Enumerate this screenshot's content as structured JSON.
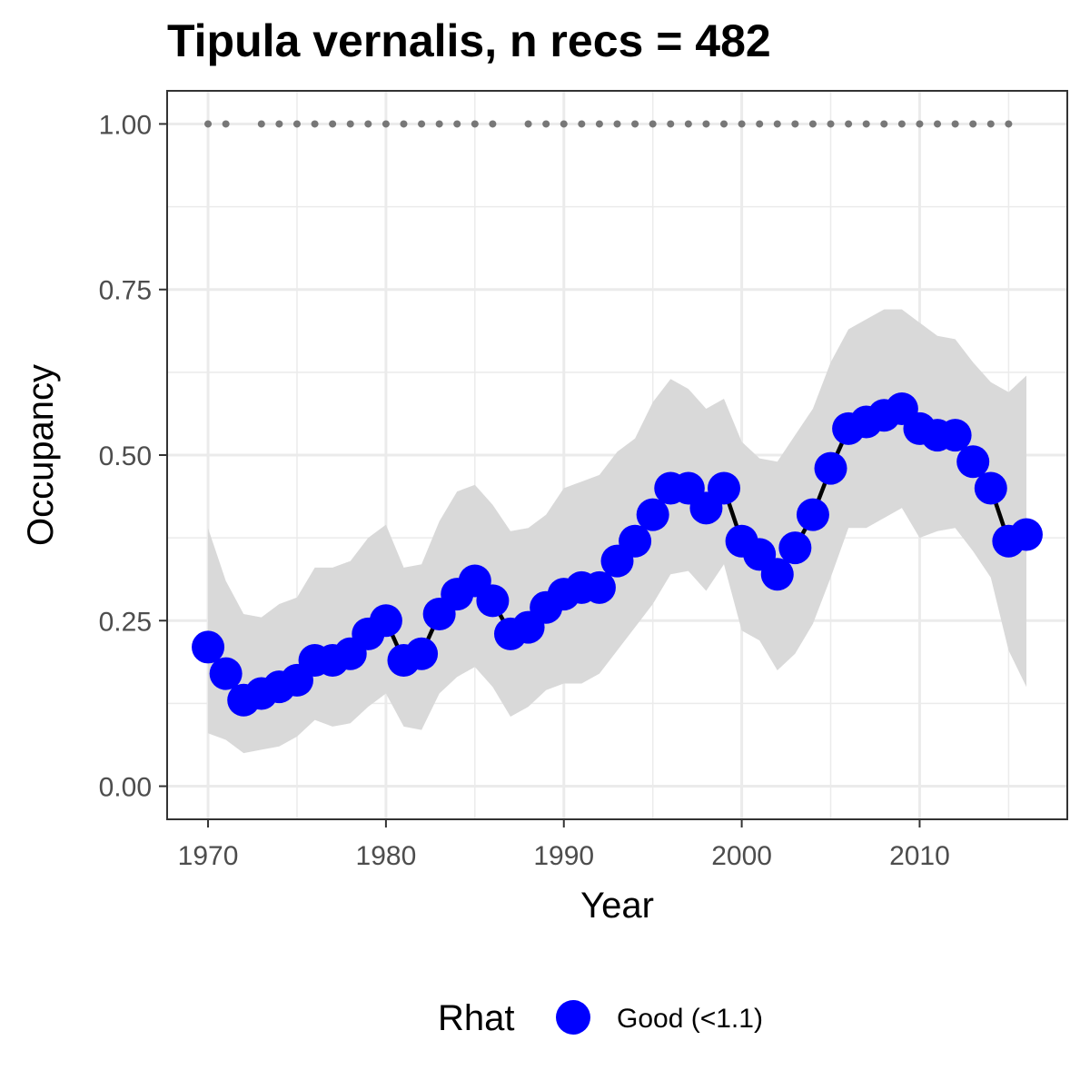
{
  "chart_data": {
    "type": "line",
    "title": "Tipula vernalis, n recs = 482",
    "xlabel": "Year",
    "ylabel": "Occupancy",
    "xlim": [
      1967.7,
      1918.3
    ],
    "ylim": [
      -0.05,
      1.05
    ],
    "x_ticks": [
      1970,
      1980,
      1990,
      2000,
      2010
    ],
    "x_tick_labels": [
      "1970",
      "1980",
      "1990",
      "2000",
      "2010"
    ],
    "y_ticks": [
      0,
      0.25,
      0.5,
      0.75,
      1
    ],
    "y_tick_labels": [
      "0.00",
      "0.25",
      "0.50",
      "0.75",
      "1.00"
    ],
    "grid": true,
    "legend_position": "bottom",
    "legend_title": "Rhat",
    "legend_label": "Good (<1.1)",
    "point_color": "#0000ff",
    "line_color": "#000000",
    "ribbon_color": "#d9d9d9",
    "rug_color": "#777777",
    "years": [
      1970,
      1971,
      1972,
      1973,
      1974,
      1975,
      1976,
      1977,
      1978,
      1979,
      1980,
      1981,
      1982,
      1983,
      1984,
      1985,
      1986,
      1987,
      1988,
      1989,
      1990,
      1991,
      1992,
      1993,
      1994,
      1995,
      1996,
      1997,
      1998,
      1999,
      2000,
      2001,
      2002,
      2003,
      2004,
      2005,
      2006,
      2007,
      2008,
      2009,
      2010,
      2011,
      2012,
      2013,
      2014,
      2015,
      2016
    ],
    "occupancy": [
      0.21,
      0.17,
      0.13,
      0.14,
      0.15,
      0.16,
      0.19,
      0.19,
      0.2,
      0.23,
      0.25,
      0.19,
      0.2,
      0.26,
      0.29,
      0.31,
      0.28,
      0.23,
      0.24,
      0.27,
      0.29,
      0.3,
      0.3,
      0.34,
      0.37,
      0.41,
      0.45,
      0.45,
      0.42,
      0.45,
      0.37,
      0.35,
      0.32,
      0.36,
      0.41,
      0.48,
      0.54,
      0.55,
      0.56,
      0.57,
      0.54,
      0.53,
      0.53,
      0.49,
      0.45,
      0.37,
      0.38
    ],
    "lower": [
      0.08,
      0.07,
      0.05,
      0.055,
      0.06,
      0.075,
      0.1,
      0.09,
      0.095,
      0.12,
      0.14,
      0.09,
      0.085,
      0.14,
      0.165,
      0.18,
      0.15,
      0.105,
      0.12,
      0.145,
      0.155,
      0.155,
      0.17,
      0.205,
      0.24,
      0.275,
      0.32,
      0.325,
      0.295,
      0.335,
      0.235,
      0.22,
      0.175,
      0.2,
      0.245,
      0.315,
      0.39,
      0.39,
      0.405,
      0.42,
      0.375,
      0.385,
      0.39,
      0.355,
      0.315,
      0.205,
      0.15
    ],
    "upper": [
      0.39,
      0.31,
      0.26,
      0.255,
      0.275,
      0.285,
      0.33,
      0.33,
      0.34,
      0.375,
      0.395,
      0.33,
      0.335,
      0.4,
      0.445,
      0.455,
      0.425,
      0.385,
      0.39,
      0.41,
      0.45,
      0.46,
      0.47,
      0.505,
      0.525,
      0.58,
      0.615,
      0.6,
      0.57,
      0.585,
      0.52,
      0.495,
      0.49,
      0.53,
      0.57,
      0.64,
      0.69,
      0.705,
      0.72,
      0.72,
      0.7,
      0.68,
      0.675,
      0.64,
      0.61,
      0.595,
      0.62
    ],
    "record_years": [
      1970,
      1971,
      1973,
      1974,
      1975,
      1976,
      1977,
      1978,
      1979,
      1980,
      1981,
      1982,
      1983,
      1984,
      1985,
      1986,
      1988,
      1989,
      1990,
      1991,
      1992,
      1993,
      1994,
      1995,
      1996,
      1997,
      1998,
      1999,
      2000,
      2001,
      2002,
      2003,
      2004,
      2005,
      2006,
      2007,
      2008,
      2009,
      2010,
      2011,
      2012,
      2013,
      2014,
      2015
    ]
  }
}
